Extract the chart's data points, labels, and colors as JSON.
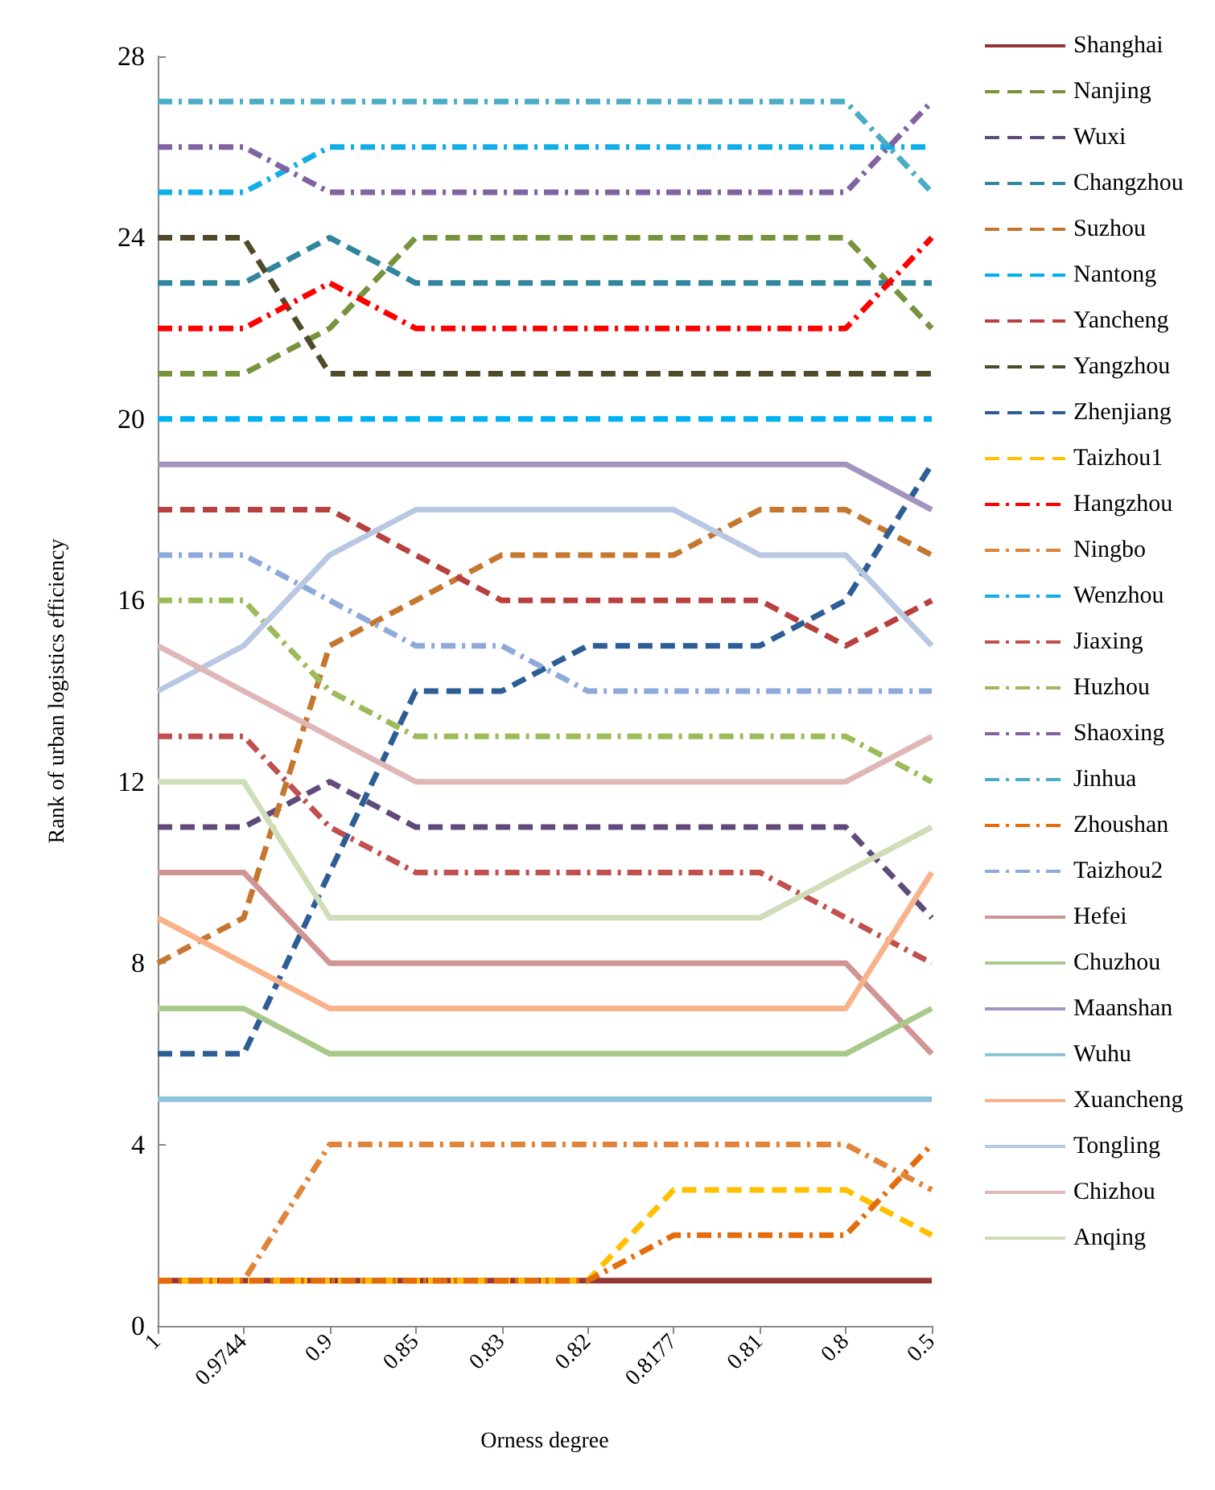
{
  "chart_data": {
    "type": "line",
    "xlabel": "Orness degree",
    "ylabel": "Rank of urban logistics efficiency",
    "categories": [
      "1",
      "0.9744",
      "0.9",
      "0.85",
      "0.83",
      "0.82",
      "0.8177",
      "0.81",
      "0.8",
      "0.5"
    ],
    "ylim": [
      0,
      28
    ],
    "yticks": [
      0,
      4,
      8,
      12,
      16,
      20,
      24,
      28
    ],
    "grid": false,
    "legend": "right",
    "marker": "none",
    "series": [
      {
        "name": "Shanghai",
        "color": "#943634",
        "line_style": "solid",
        "values": [
          1,
          1,
          1,
          1,
          1,
          1,
          1,
          1,
          1,
          1
        ]
      },
      {
        "name": "Nanjing",
        "color": "#77933c",
        "line_style": "dashed",
        "values": [
          21,
          21,
          22,
          24,
          24,
          24,
          24,
          24,
          24,
          22
        ]
      },
      {
        "name": "Wuxi",
        "color": "#604a7b",
        "line_style": "dashed",
        "values": [
          11,
          11,
          12,
          11,
          11,
          11,
          11,
          11,
          11,
          9
        ]
      },
      {
        "name": "Changzhou",
        "color": "#31859c",
        "line_style": "dashed",
        "values": [
          23,
          23,
          24,
          23,
          23,
          23,
          23,
          23,
          23,
          23
        ]
      },
      {
        "name": "Suzhou",
        "color": "#c5772f",
        "line_style": "dashed",
        "values": [
          8,
          9,
          15,
          16,
          17,
          17,
          17,
          18,
          18,
          17
        ]
      },
      {
        "name": "Nantong",
        "color": "#00b0f0",
        "line_style": "dashed",
        "values": [
          20,
          20,
          20,
          20,
          20,
          20,
          20,
          20,
          20,
          20
        ]
      },
      {
        "name": "Yancheng",
        "color": "#b7413e",
        "line_style": "dashed",
        "values": [
          18,
          18,
          18,
          17,
          16,
          16,
          16,
          16,
          15,
          16
        ]
      },
      {
        "name": "Yangzhou",
        "color": "#4f4a2a",
        "line_style": "dashed",
        "values": [
          24,
          24,
          21,
          21,
          21,
          21,
          21,
          21,
          21,
          21
        ]
      },
      {
        "name": "Zhenjiang",
        "color": "#2e5d96",
        "line_style": "dashed",
        "values": [
          6,
          6,
          10,
          14,
          14,
          15,
          15,
          15,
          16,
          19
        ]
      },
      {
        "name": "Taizhou1",
        "color": "#ffc000",
        "line_style": "dashed",
        "values": [
          1,
          1,
          1,
          1,
          1,
          1,
          3,
          3,
          3,
          2
        ]
      },
      {
        "name": "Hangzhou",
        "color": "#ff0000",
        "line_style": "dashdot",
        "values": [
          22,
          22,
          23,
          22,
          22,
          22,
          22,
          22,
          22,
          24
        ]
      },
      {
        "name": "Ningbo",
        "color": "#e0843a",
        "line_style": "dashdot",
        "values": [
          1,
          1,
          4,
          4,
          4,
          4,
          4,
          4,
          4,
          3
        ]
      },
      {
        "name": "Wenzhou",
        "color": "#12aee8",
        "line_style": "dashdot",
        "values": [
          25,
          25,
          26,
          26,
          26,
          26,
          26,
          26,
          26,
          26
        ]
      },
      {
        "name": "Jiaxing",
        "color": "#c0504d",
        "line_style": "dashdot",
        "values": [
          13,
          13,
          11,
          10,
          10,
          10,
          10,
          10,
          9,
          8
        ]
      },
      {
        "name": "Huzhou",
        "color": "#9bbb59",
        "line_style": "dashdot",
        "values": [
          16,
          16,
          14,
          13,
          13,
          13,
          13,
          13,
          13,
          12
        ]
      },
      {
        "name": "Shaoxing",
        "color": "#8064a2",
        "line_style": "dashdot",
        "values": [
          26,
          26,
          25,
          25,
          25,
          25,
          25,
          25,
          25,
          27
        ]
      },
      {
        "name": "Jinhua",
        "color": "#4bacc6",
        "line_style": "dashdot",
        "values": [
          27,
          27,
          27,
          27,
          27,
          27,
          27,
          27,
          27,
          25
        ]
      },
      {
        "name": "Zhoushan",
        "color": "#e46c0a",
        "line_style": "dashdot",
        "values": [
          1,
          1,
          1,
          1,
          1,
          1,
          2,
          2,
          2,
          4
        ]
      },
      {
        "name": "Taizhou2",
        "color": "#8eaadb",
        "line_style": "dashdot",
        "values": [
          17,
          17,
          16,
          15,
          15,
          14,
          14,
          14,
          14,
          14
        ]
      },
      {
        "name": "Hefei",
        "color": "#d09494",
        "line_style": "solid",
        "values": [
          10,
          10,
          8,
          8,
          8,
          8,
          8,
          8,
          8,
          6
        ]
      },
      {
        "name": "Chuzhou",
        "color": "#a8c98a",
        "line_style": "solid",
        "values": [
          7,
          7,
          6,
          6,
          6,
          6,
          6,
          6,
          6,
          7
        ]
      },
      {
        "name": "Maanshan",
        "color": "#a393c0",
        "line_style": "solid",
        "values": [
          19,
          19,
          19,
          19,
          19,
          19,
          19,
          19,
          19,
          18
        ]
      },
      {
        "name": "Wuhu",
        "color": "#8cc4d8",
        "line_style": "solid",
        "values": [
          5,
          5,
          5,
          5,
          5,
          5,
          5,
          5,
          5,
          5
        ]
      },
      {
        "name": "Xuancheng",
        "color": "#f9b28a",
        "line_style": "solid",
        "values": [
          9,
          8,
          7,
          7,
          7,
          7,
          7,
          7,
          7,
          10
        ]
      },
      {
        "name": "Tongling",
        "color": "#b9c8e2",
        "line_style": "solid",
        "values": [
          14,
          15,
          17,
          18,
          18,
          18,
          18,
          17,
          17,
          15
        ]
      },
      {
        "name": "Chizhou",
        "color": "#e0b7b7",
        "line_style": "solid",
        "values": [
          15,
          14,
          13,
          12,
          12,
          12,
          12,
          12,
          12,
          13
        ]
      },
      {
        "name": "Anqing",
        "color": "#cfddb8",
        "line_style": "solid",
        "values": [
          12,
          12,
          9,
          9,
          9,
          9,
          9,
          9,
          10,
          11
        ]
      }
    ]
  }
}
